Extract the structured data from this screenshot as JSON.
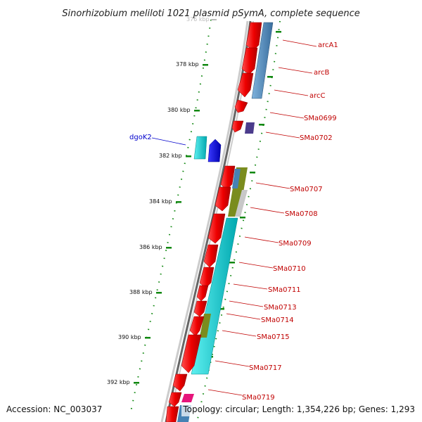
{
  "title": "Sinorhizobium meliloti 1021 plasmid pSymA, complete sequence",
  "top_tick_partial": "376 kbp",
  "ticks": [
    "378 kbp",
    "380 kbp",
    "382 kbp",
    "384 kbp",
    "386 kbp",
    "388 kbp",
    "390 kbp",
    "392 kbp"
  ],
  "genes_right": [
    "arcA1",
    "arcB",
    "arcC",
    "SMa0699",
    "SMa0702",
    "SMa0707",
    "SMa0708",
    "SMa0709",
    "SMa0710",
    "SMa0711",
    "SMa0713",
    "SMa0714",
    "SMa0715",
    "SMa0717",
    "SMa0719"
  ],
  "genes_left": [
    "dgoK2"
  ],
  "footer": {
    "accession": "Accession: NC_003037",
    "topology": "Topology: circular; Length: 1,354,226 bp; Genes: 1,293"
  },
  "colors": {
    "cds": "#ee0000",
    "label_red": "#c00000",
    "label_blue": "#0000cc",
    "cog_blue": "#4682b4",
    "cog_cyan": "#00c8c8",
    "cog_olive": "#7a8c1e",
    "cog_purple": "#4b3c8c",
    "cog_magenta": "#e6147a",
    "tick_green": "#118811",
    "backbone": "#777777"
  }
}
